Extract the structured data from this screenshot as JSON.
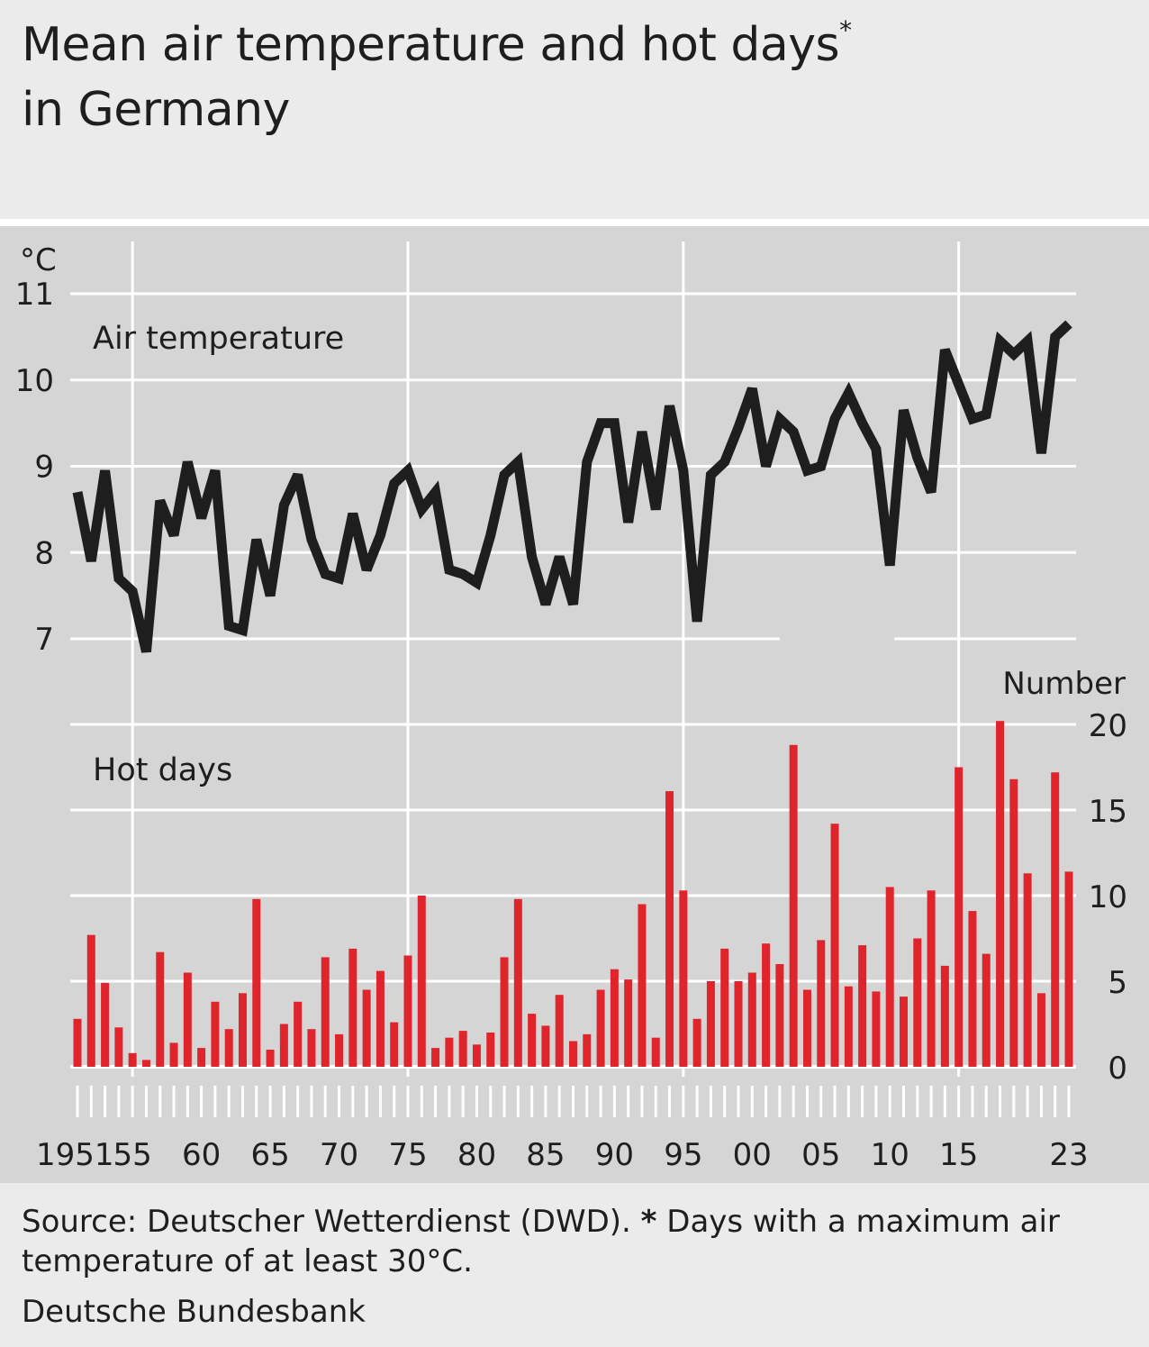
{
  "title": {
    "line1": "Mean air temperature and hot days",
    "marker": "*",
    "line2": "in Germany"
  },
  "footer": {
    "source": "Source: Deutscher Wetterdienst (DWD).",
    "note_marker": "*",
    "note": "Days with a maximum air temperature of at least 30°C.",
    "publisher": "Deutsche Bundesbank"
  },
  "colors": {
    "background": "#ebebeb",
    "plot_background": "#d5d5d5",
    "line": "#1e1e1e",
    "bar": "#e0242b",
    "grid": "#ffffff"
  },
  "chart_data": [
    {
      "type": "line",
      "title": "Air temperature",
      "ylabel": "°C",
      "ylim": [
        6,
        11
      ],
      "yticks": [
        7,
        8,
        9,
        10,
        11
      ],
      "grid": true,
      "x": [
        1951,
        1952,
        1953,
        1954,
        1955,
        1956,
        1957,
        1958,
        1959,
        1960,
        1961,
        1962,
        1963,
        1964,
        1965,
        1966,
        1967,
        1968,
        1969,
        1970,
        1971,
        1972,
        1973,
        1974,
        1975,
        1976,
        1977,
        1978,
        1979,
        1980,
        1981,
        1982,
        1983,
        1984,
        1985,
        1986,
        1987,
        1988,
        1989,
        1990,
        1991,
        1992,
        1993,
        1994,
        1995,
        1996,
        1997,
        1998,
        1999,
        2000,
        2001,
        2002,
        2003,
        2004,
        2005,
        2006,
        2007,
        2008,
        2009,
        2010,
        2011,
        2012,
        2013,
        2014,
        2015,
        2016,
        2017,
        2018,
        2019,
        2020,
        2021,
        2022,
        2023
      ],
      "series": [
        {
          "values": [
            8.7,
            7.9,
            8.95,
            7.7,
            7.55,
            6.85,
            8.6,
            8.2,
            9.05,
            8.4,
            8.95,
            7.15,
            7.1,
            8.15,
            7.5,
            8.55,
            8.9,
            8.15,
            7.75,
            7.7,
            8.45,
            7.8,
            8.2,
            8.8,
            8.95,
            8.5,
            8.7,
            7.8,
            7.75,
            7.65,
            8.2,
            8.9,
            9.05,
            7.95,
            7.4,
            7.95,
            7.4,
            9.05,
            9.5,
            9.5,
            8.35,
            9.4,
            8.5,
            9.7,
            8.95,
            7.2,
            8.9,
            9.05,
            9.45,
            9.9,
            9.0,
            9.55,
            9.4,
            8.95,
            9.0,
            9.55,
            9.85,
            9.5,
            9.2,
            7.85,
            9.65,
            9.1,
            8.7,
            10.35,
            9.95,
            9.55,
            9.6,
            10.45,
            10.3,
            10.45,
            9.15,
            10.5,
            10.65
          ]
        }
      ]
    },
    {
      "type": "bar",
      "title": "Hot days",
      "ylabel": "Number",
      "ylim": [
        0,
        20
      ],
      "yticks": [
        0,
        5,
        10,
        15,
        20
      ],
      "grid": true,
      "x": [
        1951,
        1952,
        1953,
        1954,
        1955,
        1956,
        1957,
        1958,
        1959,
        1960,
        1961,
        1962,
        1963,
        1964,
        1965,
        1966,
        1967,
        1968,
        1969,
        1970,
        1971,
        1972,
        1973,
        1974,
        1975,
        1976,
        1977,
        1978,
        1979,
        1980,
        1981,
        1982,
        1983,
        1984,
        1985,
        1986,
        1987,
        1988,
        1989,
        1990,
        1991,
        1992,
        1993,
        1994,
        1995,
        1996,
        1997,
        1998,
        1999,
        2000,
        2001,
        2002,
        2003,
        2004,
        2005,
        2006,
        2007,
        2008,
        2009,
        2010,
        2011,
        2012,
        2013,
        2014,
        2015,
        2016,
        2017,
        2018,
        2019,
        2020,
        2021,
        2022,
        2023
      ],
      "series": [
        {
          "values": [
            2.8,
            7.7,
            4.9,
            2.3,
            0.8,
            0.4,
            6.7,
            1.4,
            5.5,
            1.1,
            3.8,
            2.2,
            4.3,
            9.8,
            1.0,
            2.5,
            3.8,
            2.2,
            6.4,
            1.9,
            6.9,
            4.5,
            5.6,
            2.6,
            6.5,
            10.0,
            1.1,
            1.7,
            2.1,
            1.3,
            2.0,
            6.4,
            9.8,
            3.1,
            2.4,
            4.2,
            1.5,
            1.9,
            4.5,
            5.7,
            5.1,
            9.5,
            1.7,
            16.1,
            10.3,
            2.8,
            5.0,
            6.9,
            5.0,
            5.5,
            7.2,
            6.0,
            18.8,
            4.5,
            7.4,
            14.2,
            4.7,
            7.1,
            4.4,
            10.5,
            4.1,
            7.5,
            10.3,
            5.9,
            17.5,
            9.1,
            6.6,
            20.2,
            16.8,
            11.3,
            4.3,
            17.2,
            11.4
          ]
        }
      ]
    }
  ],
  "x_axis": {
    "tick_labels": [
      "1951",
      "55",
      "60",
      "65",
      "70",
      "75",
      "80",
      "85",
      "90",
      "95",
      "00",
      "05",
      "10",
      "15",
      "23"
    ],
    "tick_years": [
      1951,
      1955,
      1960,
      1965,
      1970,
      1975,
      1980,
      1985,
      1990,
      1995,
      2000,
      2005,
      2010,
      2015,
      2023
    ]
  }
}
